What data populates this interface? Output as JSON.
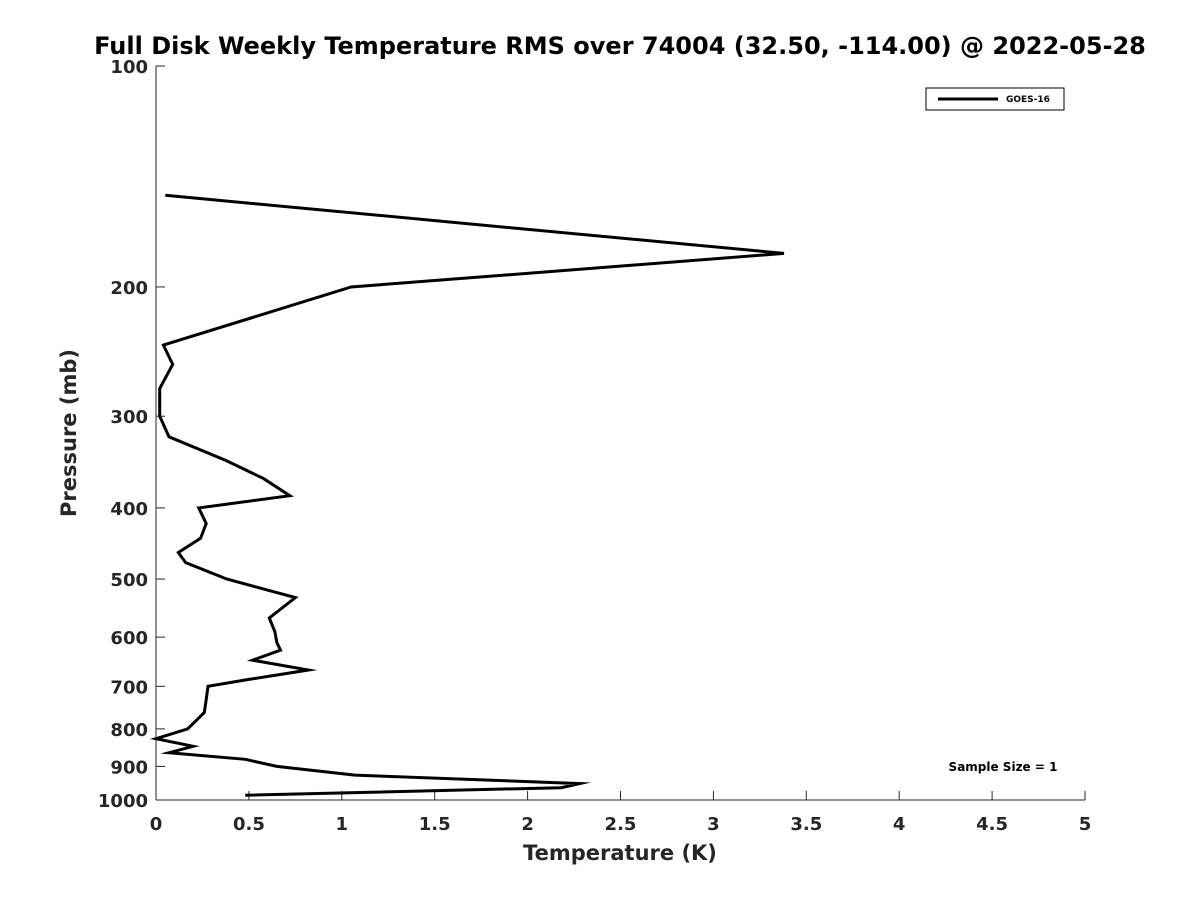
{
  "chart_data": {
    "type": "line",
    "title": "Full Disk Weekly Temperature RMS over 74004 (32.50, -114.00) @ 2022-05-28",
    "xlabel": "Temperature (K)",
    "ylabel": "Pressure (mb)",
    "xlim": [
      0,
      5
    ],
    "ylim": [
      100,
      1000
    ],
    "y_scale": "log",
    "y_reversed": true,
    "x_ticks": [
      "0",
      "0.5",
      "1",
      "1.5",
      "2",
      "2.5",
      "3",
      "3.5",
      "4",
      "4.5",
      "5"
    ],
    "y_ticks": [
      "100",
      "200",
      "300",
      "400",
      "500",
      "600",
      "700",
      "800",
      "900",
      "1000"
    ],
    "grid": false,
    "legend_position": "top-right",
    "annotation": "Sample Size = 1",
    "series": [
      {
        "name": "GOES-16",
        "color": "#000000",
        "points": [
          {
            "x": 0.05,
            "y": 150
          },
          {
            "x": 3.38,
            "y": 180
          },
          {
            "x": 1.05,
            "y": 200
          },
          {
            "x": 0.04,
            "y": 240
          },
          {
            "x": 0.09,
            "y": 255
          },
          {
            "x": 0.02,
            "y": 275
          },
          {
            "x": 0.02,
            "y": 300
          },
          {
            "x": 0.07,
            "y": 320
          },
          {
            "x": 0.38,
            "y": 345
          },
          {
            "x": 0.58,
            "y": 365
          },
          {
            "x": 0.72,
            "y": 385
          },
          {
            "x": 0.23,
            "y": 400
          },
          {
            "x": 0.27,
            "y": 420
          },
          {
            "x": 0.24,
            "y": 440
          },
          {
            "x": 0.12,
            "y": 460
          },
          {
            "x": 0.16,
            "y": 475
          },
          {
            "x": 0.38,
            "y": 500
          },
          {
            "x": 0.75,
            "y": 530
          },
          {
            "x": 0.61,
            "y": 565
          },
          {
            "x": 0.64,
            "y": 590
          },
          {
            "x": 0.65,
            "y": 610
          },
          {
            "x": 0.67,
            "y": 625
          },
          {
            "x": 0.52,
            "y": 645
          },
          {
            "x": 0.82,
            "y": 665
          },
          {
            "x": 0.5,
            "y": 685
          },
          {
            "x": 0.28,
            "y": 700
          },
          {
            "x": 0.27,
            "y": 730
          },
          {
            "x": 0.26,
            "y": 760
          },
          {
            "x": 0.17,
            "y": 800
          },
          {
            "x": 0.0,
            "y": 825
          },
          {
            "x": 0.2,
            "y": 845
          },
          {
            "x": 0.07,
            "y": 862
          },
          {
            "x": 0.48,
            "y": 880
          },
          {
            "x": 0.65,
            "y": 900
          },
          {
            "x": 1.07,
            "y": 925
          },
          {
            "x": 2.28,
            "y": 950
          },
          {
            "x": 2.18,
            "y": 962
          },
          {
            "x": 0.48,
            "y": 985
          }
        ]
      }
    ]
  }
}
